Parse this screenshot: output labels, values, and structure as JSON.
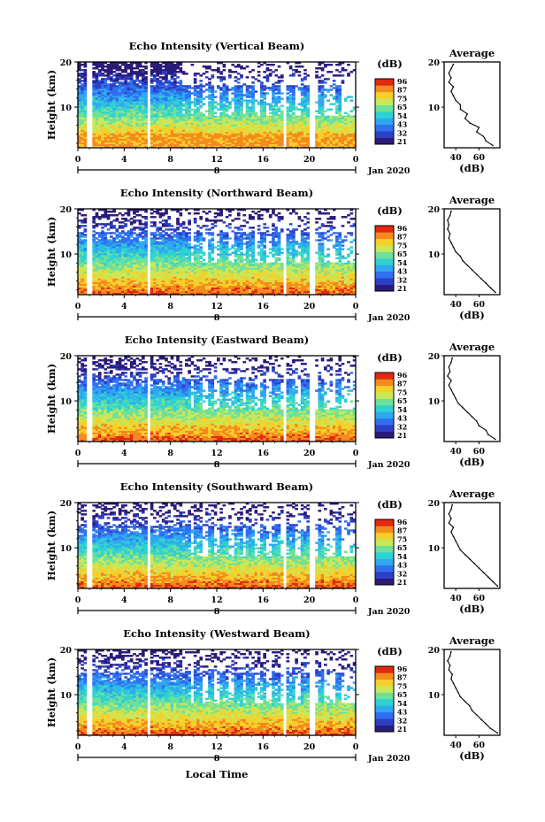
{
  "figure": {
    "y_label": "Height (km)",
    "x_label": "Local Time",
    "colorbar_unit": "(dB)",
    "colorbar_ticks": [
      "96",
      "87",
      "75",
      "65",
      "54",
      "43",
      "32",
      "21"
    ],
    "colorbar_colors": [
      "#2a1b7a",
      "#2d3fc4",
      "#2f6ff0",
      "#2fa8f0",
      "#2fd2d2",
      "#6fe09a",
      "#c8e85a",
      "#f5d02a",
      "#f58a1e",
      "#e02a10"
    ],
    "date_label": "Jan 2020",
    "avg_title": "Average",
    "avg_xlabel": "(dB)"
  },
  "chart_data": [
    {
      "type": "heatmap",
      "title": "Echo Intensity (Vertical Beam)",
      "ylabel": "Height (km)",
      "y_ticks": [
        "20",
        "10"
      ],
      "ylim": [
        1,
        20
      ],
      "x_ticks": [
        "0",
        "4",
        "8",
        "12",
        "16",
        "20",
        "0"
      ],
      "xlim": [
        0,
        24
      ],
      "day_marker": "8",
      "avg": {
        "title": "Average",
        "xlabel": "(dB)",
        "x_ticks": [
          "40",
          "60"
        ],
        "xlim": [
          30,
          78
        ],
        "height": [
          1.5,
          2.5,
          3.5,
          4.5,
          5.5,
          6.5,
          7.5,
          8.5,
          9.5,
          10.5,
          11.5,
          12.5,
          13.5,
          14.5,
          15.5,
          16.5,
          17.5,
          18.5,
          19.5
        ],
        "value": [
          72,
          66,
          64,
          58,
          60,
          52,
          48,
          50,
          44,
          44,
          40,
          38,
          36,
          38,
          34,
          36,
          34,
          36,
          38
        ]
      }
    },
    {
      "type": "heatmap",
      "title": "Echo Intensity (Northward Beam)",
      "ylabel": "Height (km)",
      "y_ticks": [
        "20",
        "10"
      ],
      "ylim": [
        1,
        20
      ],
      "x_ticks": [
        "0",
        "4",
        "8",
        "12",
        "16",
        "20",
        "0"
      ],
      "xlim": [
        0,
        24
      ],
      "day_marker": "8",
      "avg": {
        "title": "Average",
        "xlabel": "(dB)",
        "x_ticks": [
          "40",
          "60"
        ],
        "xlim": [
          30,
          78
        ],
        "height": [
          1.5,
          2.5,
          3.5,
          4.5,
          5.5,
          6.5,
          7.5,
          8.5,
          9.5,
          10.5,
          11.5,
          12.5,
          13.5,
          14.5,
          15.5,
          16.5,
          17.5,
          18.5,
          19.5
        ],
        "value": [
          74,
          70,
          66,
          62,
          58,
          54,
          50,
          46,
          44,
          40,
          38,
          36,
          34,
          35,
          33,
          34,
          33,
          35,
          36
        ]
      }
    },
    {
      "type": "heatmap",
      "title": "Echo Intensity (Eastward Beam)",
      "ylabel": "Height (km)",
      "y_ticks": [
        "20",
        "10"
      ],
      "ylim": [
        1,
        20
      ],
      "x_ticks": [
        "0",
        "4",
        "8",
        "12",
        "16",
        "20",
        "0"
      ],
      "xlim": [
        0,
        24
      ],
      "day_marker": "8",
      "avg": {
        "title": "Average",
        "xlabel": "(dB)",
        "x_ticks": [
          "40",
          "60"
        ],
        "xlim": [
          30,
          78
        ],
        "height": [
          1.5,
          2.5,
          3.5,
          4.5,
          5.5,
          6.5,
          7.5,
          8.5,
          9.5,
          10.5,
          11.5,
          12.5,
          13.5,
          14.5,
          15.5,
          16.5,
          17.5,
          18.5,
          19.5
        ],
        "value": [
          74,
          68,
          66,
          60,
          58,
          54,
          50,
          46,
          42,
          40,
          38,
          36,
          34,
          36,
          33,
          35,
          34,
          36,
          37
        ]
      }
    },
    {
      "type": "heatmap",
      "title": "Echo Intensity (Southward Beam)",
      "ylabel": "Height (km)",
      "y_ticks": [
        "20",
        "10"
      ],
      "ylim": [
        1,
        20
      ],
      "x_ticks": [
        "0",
        "4",
        "8",
        "12",
        "16",
        "20",
        "0"
      ],
      "xlim": [
        0,
        24
      ],
      "day_marker": "8",
      "avg": {
        "title": "Average",
        "xlabel": "(dB)",
        "x_ticks": [
          "40",
          "60"
        ],
        "xlim": [
          30,
          78
        ],
        "height": [
          1.5,
          2.5,
          3.5,
          4.5,
          5.5,
          6.5,
          7.5,
          8.5,
          9.5,
          10.5,
          11.5,
          12.5,
          13.5,
          14.5,
          15.5,
          16.5,
          17.5,
          18.5,
          19.5
        ],
        "value": [
          76,
          72,
          68,
          64,
          60,
          56,
          52,
          48,
          44,
          42,
          40,
          38,
          36,
          38,
          34,
          36,
          34,
          36,
          37
        ]
      }
    },
    {
      "type": "heatmap",
      "title": "Echo Intensity (Westward Beam)",
      "ylabel": "Height (km)",
      "y_ticks": [
        "20",
        "10"
      ],
      "ylim": [
        1,
        20
      ],
      "x_ticks": [
        "0",
        "4",
        "8",
        "12",
        "16",
        "20",
        "0"
      ],
      "xlim": [
        0,
        24
      ],
      "day_marker": "8",
      "avg": {
        "title": "Average",
        "xlabel": "(dB)",
        "x_ticks": [
          "40",
          "60"
        ],
        "xlim": [
          30,
          78
        ],
        "height": [
          1.5,
          2.5,
          3.5,
          4.5,
          5.5,
          6.5,
          7.5,
          8.5,
          9.5,
          10.5,
          11.5,
          12.5,
          13.5,
          14.5,
          15.5,
          16.5,
          17.5,
          18.5,
          19.5
        ],
        "value": [
          76,
          70,
          66,
          62,
          58,
          54,
          52,
          48,
          44,
          42,
          40,
          38,
          36,
          37,
          34,
          35,
          33,
          35,
          36
        ]
      }
    }
  ]
}
